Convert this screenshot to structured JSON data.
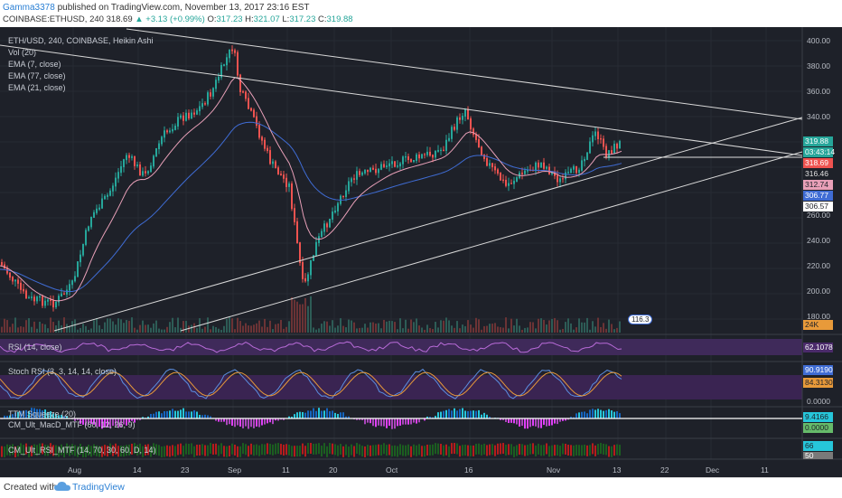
{
  "header": {
    "username": "Gamma3378",
    "published": "published on TradingView.com, November 13, 2017 23:16 EST",
    "symbol": "COINBASE:ETHUSD, 240",
    "price": "318.69",
    "change": "▲ +3.13 (+0.99%)",
    "o_label": "O:",
    "o_value": "317.23",
    "h_label": "H:",
    "h_value": "321.07",
    "l_label": "L:",
    "l_value": "317.23",
    "c_label": "C:",
    "c_value": "319.88"
  },
  "legend": {
    "title": "ETH/USD, 240, COINBASE, Heikin Ashi",
    "items": [
      "Vol (20)",
      "EMA (7, close)",
      "EMA (77, close)",
      "EMA (21, close)"
    ]
  },
  "price_axis": {
    "ticks": [
      "400.00",
      "380.00",
      "360.00",
      "340.00",
      "260.00",
      "240.00",
      "220.00",
      "200.00",
      "180.00"
    ],
    "tags": [
      {
        "text": "319.88",
        "color": "#26a69a",
        "fg": "#ffffff"
      },
      {
        "text": "03:43:14",
        "color": "#26a69a",
        "fg": "#ffffff"
      },
      {
        "text": "318.69",
        "color": "#ef5350",
        "fg": "#ffffff"
      },
      {
        "text": "316.46",
        "color": "#1e2129",
        "fg": "#e0e0e0"
      },
      {
        "text": "312.74",
        "color": "#e8a0b8",
        "fg": "#1e2129"
      },
      {
        "text": "306.77",
        "color": "#3f6cd4",
        "fg": "#ffffff"
      },
      {
        "text": "306.57",
        "color": "#ffffff",
        "fg": "#1e2129"
      }
    ],
    "vol_tag": "24K",
    "vol_bubble": "116.3"
  },
  "panes": {
    "rsi": {
      "label": "RSI (14, close)",
      "value": "62.1078"
    },
    "stoch": {
      "label": "Stoch RSI (3, 3, 14, 14, close)",
      "value1": "90.9190",
      "value2": "84.3130",
      "zero": "0.0000"
    },
    "ttm": {
      "label1": "TTM Squeeze (20)",
      "label2": "CM_Ult_MacD_MTF (60, 12, 26, 9)",
      "value1": "9.4166",
      "value2": "0.0000"
    },
    "cmrsi": {
      "label": "CM_Ult_RSI_MTF (14, 70, 30, 60, D, 14)",
      "value1": "66",
      "value2": "50"
    }
  },
  "time_axis": [
    "Aug",
    "14",
    "23",
    "Sep",
    "11",
    "20",
    "Oct",
    "16",
    "Nov",
    "13",
    "22",
    "Dec",
    "11"
  ],
  "footer": {
    "created": "Created with",
    "brand": "TradingView"
  },
  "colors": {
    "background": "#1e2129",
    "bull": "#26a69a",
    "bear": "#ef5350",
    "rsi_fill": "#4a2a6a",
    "ema7": "#e8a0b8",
    "ema77": "#3f6cd4",
    "trendline": "#ffffff"
  }
}
